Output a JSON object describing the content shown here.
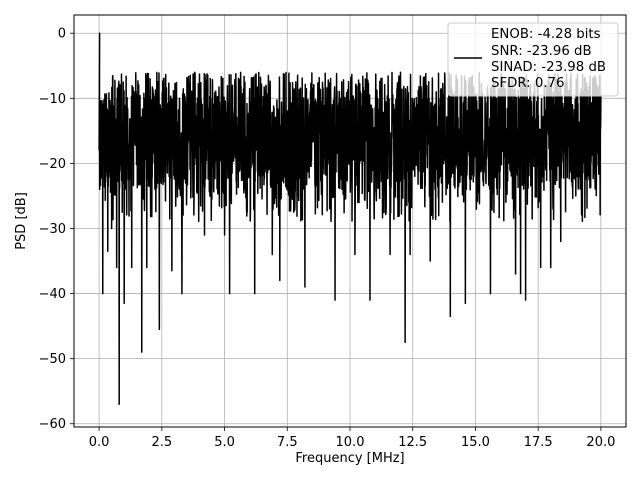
{
  "chart_data": {
    "type": "line",
    "title": "",
    "xlabel": "Frequency [MHz]",
    "ylabel": "PSD [dB]",
    "xlim": [
      -1.0,
      21.0
    ],
    "ylim": [
      -60.5,
      2.8
    ],
    "xticks": [
      0.0,
      2.5,
      5.0,
      7.5,
      10.0,
      12.5,
      15.0,
      17.5,
      20.0
    ],
    "xtick_labels": [
      "0.0",
      "2.5",
      "5.0",
      "7.5",
      "10.0",
      "12.5",
      "15.0",
      "17.5",
      "20.0"
    ],
    "yticks": [
      0,
      -10,
      -20,
      -30,
      -40,
      -50,
      -60
    ],
    "ytick_labels": [
      "0",
      "−10",
      "−20",
      "−30",
      "−40",
      "−50",
      "−60"
    ],
    "grid": true,
    "legend_position": "top-right",
    "legend_entries": [
      "ENOB: -4.28 bits",
      "SNR: -23.96 dB",
      "SINAD: -23.98 dB",
      "SFDR: 0.76"
    ],
    "series": [
      {
        "color": "#000000",
        "x_start": 0.0,
        "x_end": 20.0,
        "peak": {
          "x": 0.02,
          "y": 0.0
        },
        "floor_band_db": {
          "low": -24,
          "high": -10
        },
        "dips": [
          {
            "x": 0.15,
            "y": -40
          },
          {
            "x": 0.35,
            "y": -33.5
          },
          {
            "x": 0.5,
            "y": -30
          },
          {
            "x": 0.7,
            "y": -36
          },
          {
            "x": 0.8,
            "y": -57
          },
          {
            "x": 1.0,
            "y": -41.5
          },
          {
            "x": 1.3,
            "y": -36
          },
          {
            "x": 1.7,
            "y": -49
          },
          {
            "x": 1.9,
            "y": -36
          },
          {
            "x": 2.4,
            "y": -45.5
          },
          {
            "x": 2.9,
            "y": -36.5
          },
          {
            "x": 3.3,
            "y": -40
          },
          {
            "x": 4.2,
            "y": -31
          },
          {
            "x": 5.0,
            "y": -31
          },
          {
            "x": 5.2,
            "y": -40
          },
          {
            "x": 6.2,
            "y": -40
          },
          {
            "x": 6.9,
            "y": -34
          },
          {
            "x": 7.2,
            "y": -38
          },
          {
            "x": 8.2,
            "y": -39
          },
          {
            "x": 9.4,
            "y": -41
          },
          {
            "x": 10.2,
            "y": -34
          },
          {
            "x": 10.8,
            "y": -41
          },
          {
            "x": 11.6,
            "y": -34
          },
          {
            "x": 12.2,
            "y": -47.5
          },
          {
            "x": 12.4,
            "y": -34
          },
          {
            "x": 13.2,
            "y": -35
          },
          {
            "x": 14.0,
            "y": -43.5
          },
          {
            "x": 14.6,
            "y": -41.5
          },
          {
            "x": 15.6,
            "y": -40
          },
          {
            "x": 16.6,
            "y": -37
          },
          {
            "x": 16.8,
            "y": -40
          },
          {
            "x": 17.0,
            "y": -41
          },
          {
            "x": 17.6,
            "y": -36
          },
          {
            "x": 18.0,
            "y": -36
          },
          {
            "x": 18.4,
            "y": -32
          },
          {
            "x": 19.0,
            "y": -25
          }
        ]
      }
    ]
  }
}
